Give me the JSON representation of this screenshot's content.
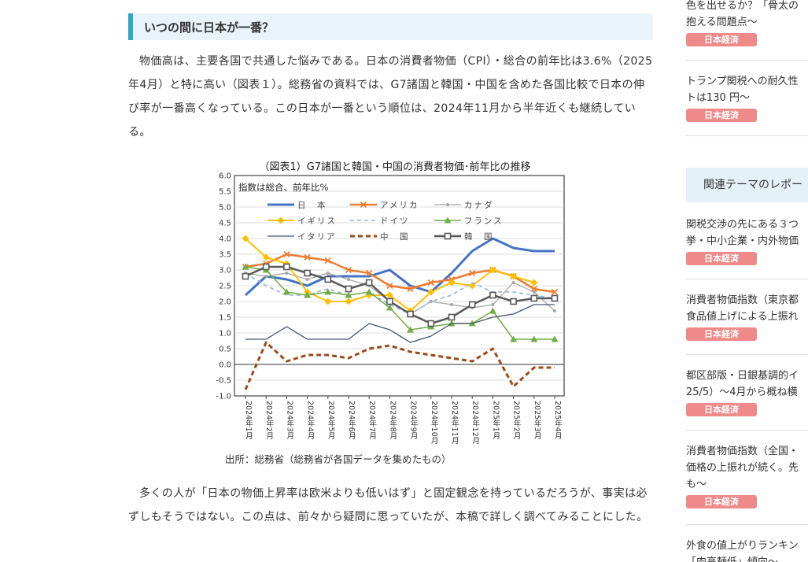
{
  "article": {
    "heading": "いつの間に日本が一番？",
    "para1": "物価高は、主要各国で共通した悩みである。日本の消費者物価（CPI）・総合の前年比は3.6%（2025年4月）と特に高い（図表１）。総務省の資料では、G7諸国と韓国・中国を含めた各国比較で日本の伸び率が一番高くなっている。この日本が一番という順位は、2024年11月から半年近くも継続している。",
    "para2": "多くの人が「日本の物価上昇率は欧米よりも低いはず」と固定観念を持っているだろうが、事実は必ずしもそうではない。この点は、前々から疑問に思っていたが、本稿で詳しく調べてみることにした。"
  },
  "sidebar": {
    "items": [
      {
        "title_lines": [
          "色を出せるか？「骨太の",
          "抱える問題点～"
        ],
        "badge": "日本経済"
      },
      {
        "title_lines": [
          "トランプ関税への耐久性",
          "トは130 円～"
        ],
        "badge": "日本経済"
      },
      {
        "title_lines": [
          "関税交渉の先にある３つ",
          "挙・中小企業・内外物価"
        ],
        "badge": "日本経済"
      },
      {
        "title_lines": [
          "消費者物価指数（東京都",
          "食品値上げによる上振れ"
        ],
        "badge": "日本経済"
      },
      {
        "title_lines": [
          "都区部版・日銀基調的イ",
          "25/5）～4月から概ね横"
        ],
        "badge": "日本経済"
      },
      {
        "title_lines": [
          "消費者物価指数（全国・",
          "価格の上振れが続く。先",
          "も～"
        ],
        "badge": "日本経済"
      },
      {
        "title_lines": [
          "外食の値上がりランキン",
          "「肉高麺低」傾向～"
        ],
        "badge": ""
      }
    ],
    "section_heading": "関連テーマのレポー"
  },
  "chart_data": {
    "type": "line",
    "title": "（図表1）G7諸国と韓国・中国の消費者物価･前年比の推移",
    "inner_note": "指数は総合、前年比%",
    "source": "出所：総務省（総務省が各国データを集めたもの）",
    "ylim": [
      -1.0,
      6.0
    ],
    "yticks": [
      "6.0",
      "5.5",
      "5.0",
      "4.5",
      "4.0",
      "3.5",
      "3.0",
      "2.5",
      "2.0",
      "1.5",
      "1.0",
      "0.5",
      "0.0",
      "-0.5",
      "-1.0"
    ],
    "categories": [
      "2024年1月",
      "2024年2月",
      "2024年3月",
      "2024年4月",
      "2024年5月",
      "2024年6月",
      "2024年7月",
      "2024年8月",
      "2024年9月",
      "2024年10月",
      "2024年11月",
      "2024年12月",
      "2025年1月",
      "2025年2月",
      "2025年3月",
      "2025年4月"
    ],
    "series": [
      {
        "name": "日　本",
        "color": "#4472c4",
        "dash": "",
        "marker": "none",
        "width": 3,
        "values": [
          2.2,
          2.8,
          2.7,
          2.5,
          2.8,
          2.8,
          2.8,
          3.0,
          2.5,
          2.3,
          2.9,
          3.6,
          4.0,
          3.7,
          3.6,
          3.6
        ]
      },
      {
        "name": "アメリカ",
        "color": "#ed7d31",
        "dash": "",
        "marker": "x",
        "width": 2.5,
        "values": [
          3.1,
          3.2,
          3.5,
          3.4,
          3.3,
          3.0,
          2.9,
          2.5,
          2.4,
          2.6,
          2.7,
          2.9,
          3.0,
          2.8,
          2.4,
          2.3
        ]
      },
      {
        "name": "カナダ",
        "color": "#a5a5a5",
        "dash": "",
        "marker": "dot",
        "width": 1.2,
        "values": [
          2.9,
          2.8,
          2.9,
          2.7,
          2.9,
          2.7,
          2.5,
          2.0,
          1.6,
          2.0,
          1.9,
          1.8,
          1.9,
          2.6,
          2.3,
          1.7
        ]
      },
      {
        "name": "イギリス",
        "color": "#ffc000",
        "dash": "",
        "marker": "diamond",
        "width": 2,
        "values": [
          4.0,
          3.4,
          3.2,
          2.3,
          2.0,
          2.0,
          2.2,
          2.2,
          1.7,
          2.3,
          2.6,
          2.5,
          3.0,
          2.8,
          2.6,
          null
        ]
      },
      {
        "name": "ドイツ",
        "color": "#8fb3d9",
        "dash": "5,4",
        "marker": "none",
        "width": 1.6,
        "values": [
          2.9,
          2.5,
          2.2,
          2.2,
          2.4,
          2.2,
          2.3,
          1.9,
          1.6,
          2.0,
          2.2,
          2.6,
          2.3,
          2.3,
          2.2,
          2.1
        ]
      },
      {
        "name": "フランス",
        "color": "#70ad47",
        "dash": "",
        "marker": "triangle",
        "width": 1.5,
        "values": [
          3.1,
          3.0,
          2.3,
          2.2,
          2.3,
          2.2,
          2.3,
          1.8,
          1.1,
          1.2,
          1.3,
          1.3,
          1.7,
          0.8,
          0.8,
          0.8
        ]
      },
      {
        "name": "イタリア",
        "color": "#44546a",
        "dash": "",
        "marker": "none",
        "width": 1.3,
        "values": [
          0.8,
          0.8,
          1.2,
          0.8,
          0.8,
          0.8,
          1.3,
          1.1,
          0.7,
          0.9,
          1.3,
          1.3,
          1.5,
          1.6,
          1.9,
          1.9
        ]
      },
      {
        "name": "中　国",
        "color": "#9c4a1a",
        "dash": "6,4",
        "marker": "none",
        "width": 3,
        "values": [
          -0.8,
          0.7,
          0.1,
          0.3,
          0.3,
          0.2,
          0.5,
          0.6,
          0.4,
          0.3,
          0.2,
          0.1,
          0.5,
          -0.7,
          -0.1,
          -0.1
        ]
      },
      {
        "name": "韓　国",
        "color": "#595959",
        "dash": "",
        "marker": "square",
        "width": 2.5,
        "values": [
          2.8,
          3.1,
          3.1,
          2.9,
          2.7,
          2.4,
          2.6,
          2.0,
          1.6,
          1.3,
          1.5,
          1.9,
          2.2,
          2.0,
          2.1,
          2.1
        ]
      }
    ]
  }
}
